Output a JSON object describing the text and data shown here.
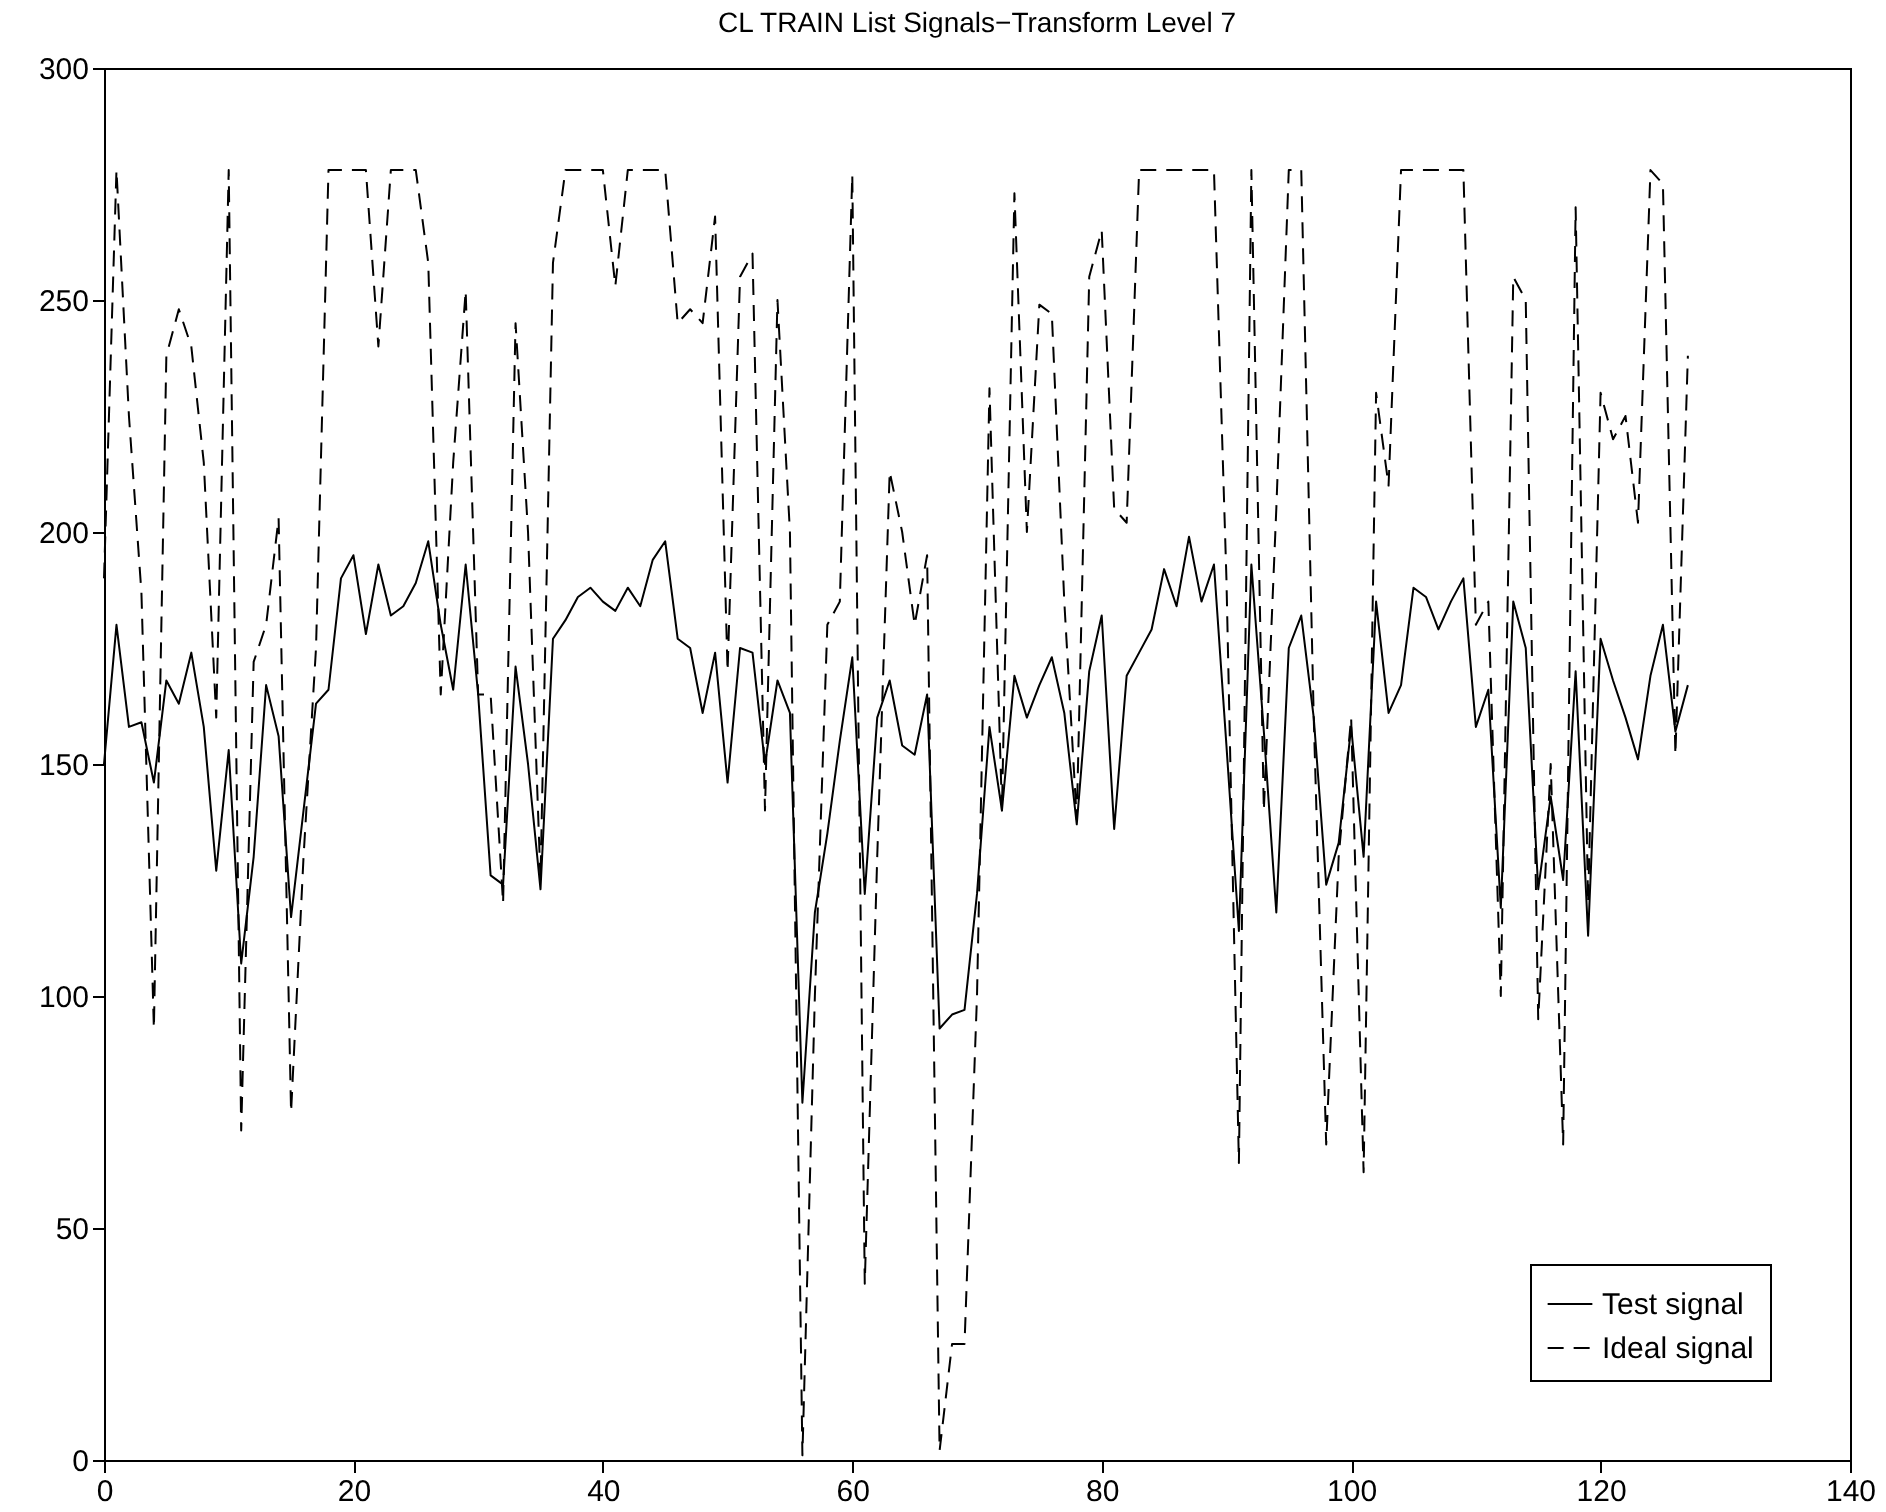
{
  "chart_data": {
    "type": "line",
    "title": "CL TRAIN List Signals−Transform Level 7",
    "x": [
      0,
      1,
      2,
      3,
      4,
      5,
      6,
      7,
      8,
      9,
      10,
      11,
      12,
      13,
      14,
      15,
      16,
      17,
      18,
      19,
      20,
      21,
      22,
      23,
      24,
      25,
      26,
      27,
      28,
      29,
      30,
      31,
      32,
      33,
      34,
      35,
      36,
      37,
      38,
      39,
      40,
      41,
      42,
      43,
      44,
      45,
      46,
      47,
      48,
      49,
      50,
      51,
      52,
      53,
      54,
      55,
      56,
      57,
      58,
      59,
      60,
      61,
      62,
      63,
      64,
      65,
      66,
      67,
      68,
      69,
      70,
      71,
      72,
      73,
      74,
      75,
      76,
      77,
      78,
      79,
      80,
      81,
      82,
      83,
      84,
      85,
      86,
      87,
      88,
      89,
      90,
      91,
      92,
      93,
      94,
      95,
      96,
      97,
      98,
      99,
      100,
      101,
      102,
      103,
      104,
      105,
      106,
      107,
      108,
      109,
      110,
      111,
      112,
      113,
      114,
      115,
      116,
      117,
      118,
      119,
      120,
      121,
      122,
      123,
      124,
      125,
      126,
      127
    ],
    "series": [
      {
        "name": "Test signal",
        "color": "#000000",
        "line_style": "solid",
        "values": [
          150,
          180,
          158,
          159,
          146,
          168,
          163,
          174,
          158,
          127,
          153,
          107,
          130,
          167,
          156,
          117,
          140,
          163,
          166,
          190,
          195,
          178,
          193,
          182,
          184,
          189,
          198,
          180,
          166,
          193,
          165,
          126,
          124,
          171,
          150,
          123,
          177,
          181,
          186,
          188,
          185,
          183,
          188,
          184,
          194,
          198,
          177,
          175,
          161,
          174,
          146,
          175,
          174,
          150,
          168,
          161,
          77,
          118,
          135,
          155,
          173,
          122,
          160,
          168,
          154,
          152,
          165,
          93,
          96,
          97,
          122,
          158,
          140,
          169,
          160,
          167,
          173,
          161,
          137,
          170,
          182,
          136,
          169,
          174,
          179,
          192,
          184,
          199,
          185,
          193,
          154,
          114,
          193,
          157,
          118,
          175,
          182,
          160,
          124,
          133,
          158,
          130,
          185,
          161,
          167,
          188,
          186,
          179,
          185,
          190,
          158,
          166,
          119,
          185,
          175,
          123,
          143,
          125,
          170,
          113,
          177,
          168,
          160,
          151,
          169,
          180,
          157,
          167
        ]
      },
      {
        "name": "Ideal signal",
        "color": "#000000",
        "line_style": "dashed",
        "values": [
          190,
          278,
          225,
          187,
          93,
          238,
          248,
          240,
          215,
          160,
          278,
          71,
          172,
          180,
          203,
          75,
          130,
          175,
          278,
          278,
          278,
          278,
          240,
          278,
          278,
          278,
          258,
          165,
          215,
          252,
          165,
          165,
          120,
          245,
          200,
          125,
          258,
          278,
          278,
          278,
          278,
          253,
          278,
          278,
          278,
          278,
          245,
          248,
          245,
          268,
          170,
          255,
          260,
          140,
          250,
          200,
          1,
          100,
          180,
          185,
          277,
          38,
          130,
          213,
          200,
          180,
          195,
          2,
          25,
          25,
          100,
          231,
          140,
          273,
          200,
          249,
          247,
          185,
          138,
          255,
          265,
          205,
          202,
          278,
          278,
          278,
          278,
          278,
          278,
          278,
          190,
          64,
          278,
          140,
          205,
          278,
          278,
          160,
          68,
          130,
          160,
          62,
          230,
          210,
          278,
          278,
          278,
          278,
          278,
          278,
          180,
          185,
          100,
          255,
          250,
          95,
          150,
          68,
          270,
          120,
          230,
          220,
          225,
          202,
          278,
          275,
          152,
          238
        ]
      }
    ],
    "xlim": [
      0,
      140
    ],
    "xticks": [
      0,
      20,
      40,
      60,
      80,
      100,
      120,
      140
    ],
    "ylim": [
      0,
      300
    ],
    "yticks": [
      0,
      50,
      100,
      150,
      200,
      250,
      300
    ],
    "legend": "bottom right",
    "marker": "none"
  }
}
